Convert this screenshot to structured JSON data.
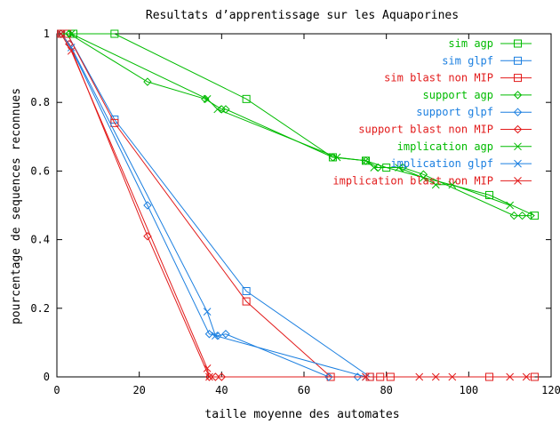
{
  "chart_data": {
    "type": "line",
    "title": "Resultats d’apprentissage sur les Aquaporines",
    "xlabel": "taille moyenne des automates",
    "ylabel": "pourcentage de sequences reconnues",
    "xlim": [
      0,
      120
    ],
    "ylim": [
      0,
      1
    ],
    "xticks": [
      0,
      20,
      40,
      60,
      80,
      100,
      120
    ],
    "xtick_labels": [
      "0",
      "20",
      "40",
      "60",
      "80",
      "100",
      "120"
    ],
    "yticks": [
      0,
      0.2,
      0.4,
      0.6,
      0.8,
      1
    ],
    "ytick_labels": [
      "0",
      "0.2",
      "0.4",
      "0.6",
      "0.8",
      "1"
    ],
    "grid": false,
    "legend_position": "top-right",
    "colors": {
      "agp": "#00bb00",
      "glpf": "#1b7fe0",
      "blast": "#e21b1b",
      "axis": "#000000"
    },
    "series": [
      {
        "name": "sim agp",
        "marker": "square",
        "color": "#00bb00",
        "x": [
          1,
          4,
          14,
          46,
          67,
          75,
          80,
          105,
          116
        ],
        "y": [
          1,
          1,
          1,
          0.81,
          0.64,
          0.63,
          0.61,
          0.53,
          0.47
        ]
      },
      {
        "name": "sim glpf",
        "marker": "square",
        "color": "#1b7fe0",
        "x": [
          1,
          2.5,
          14,
          46,
          76
        ],
        "y": [
          1,
          1,
          0.75,
          0.25,
          0
        ]
      },
      {
        "name": "sim blast non MIP",
        "marker": "square",
        "color": "#e21b1b",
        "x": [
          1,
          2.5,
          14,
          46,
          66.5,
          76,
          78.5,
          81,
          105,
          116
        ],
        "y": [
          1,
          1,
          0.74,
          0.22,
          0,
          0,
          0,
          0,
          0,
          0
        ]
      },
      {
        "name": "support agp",
        "marker": "diamond",
        "color": "#00bb00",
        "x": [
          1,
          3,
          22,
          36,
          40,
          41,
          67,
          75,
          78,
          84,
          89,
          111,
          113,
          115
        ],
        "y": [
          1,
          1,
          0.86,
          0.81,
          0.78,
          0.78,
          0.64,
          0.63,
          0.61,
          0.61,
          0.59,
          0.47,
          0.47,
          0.47
        ]
      },
      {
        "name": "support glpf",
        "marker": "diamond",
        "color": "#1b7fe0",
        "x": [
          1,
          3,
          22,
          37,
          39,
          41,
          66,
          73
        ],
        "y": [
          1,
          0.97,
          0.5,
          0.125,
          0.12,
          0.125,
          0,
          0
        ]
      },
      {
        "name": "support blast non MIP",
        "marker": "diamond",
        "color": "#e21b1b",
        "x": [
          1,
          3,
          22,
          37,
          38.5,
          40
        ],
        "y": [
          1,
          0.97,
          0.41,
          0,
          0,
          0
        ]
      },
      {
        "name": "implication agp",
        "marker": "x",
        "color": "#00bb00",
        "x": [
          1,
          3.5,
          36.5,
          39,
          68,
          75,
          77,
          83,
          89,
          92,
          96,
          110
        ],
        "y": [
          1,
          1,
          0.81,
          0.78,
          0.64,
          0.63,
          0.61,
          0.61,
          0.58,
          0.56,
          0.56,
          0.5
        ]
      },
      {
        "name": "implication glpf",
        "marker": "x",
        "color": "#1b7fe0",
        "x": [
          1,
          3.5,
          36.5,
          38.5,
          75
        ],
        "y": [
          1,
          0.96,
          0.19,
          0.12,
          0
        ]
      },
      {
        "name": "implication blast non MIP",
        "marker": "x",
        "color": "#e21b1b",
        "x": [
          1,
          3.5,
          36.5,
          37,
          75,
          88,
          92,
          96,
          110,
          114
        ],
        "y": [
          1,
          0.95,
          0.025,
          0,
          0,
          0,
          0,
          0,
          0,
          0
        ]
      }
    ]
  }
}
